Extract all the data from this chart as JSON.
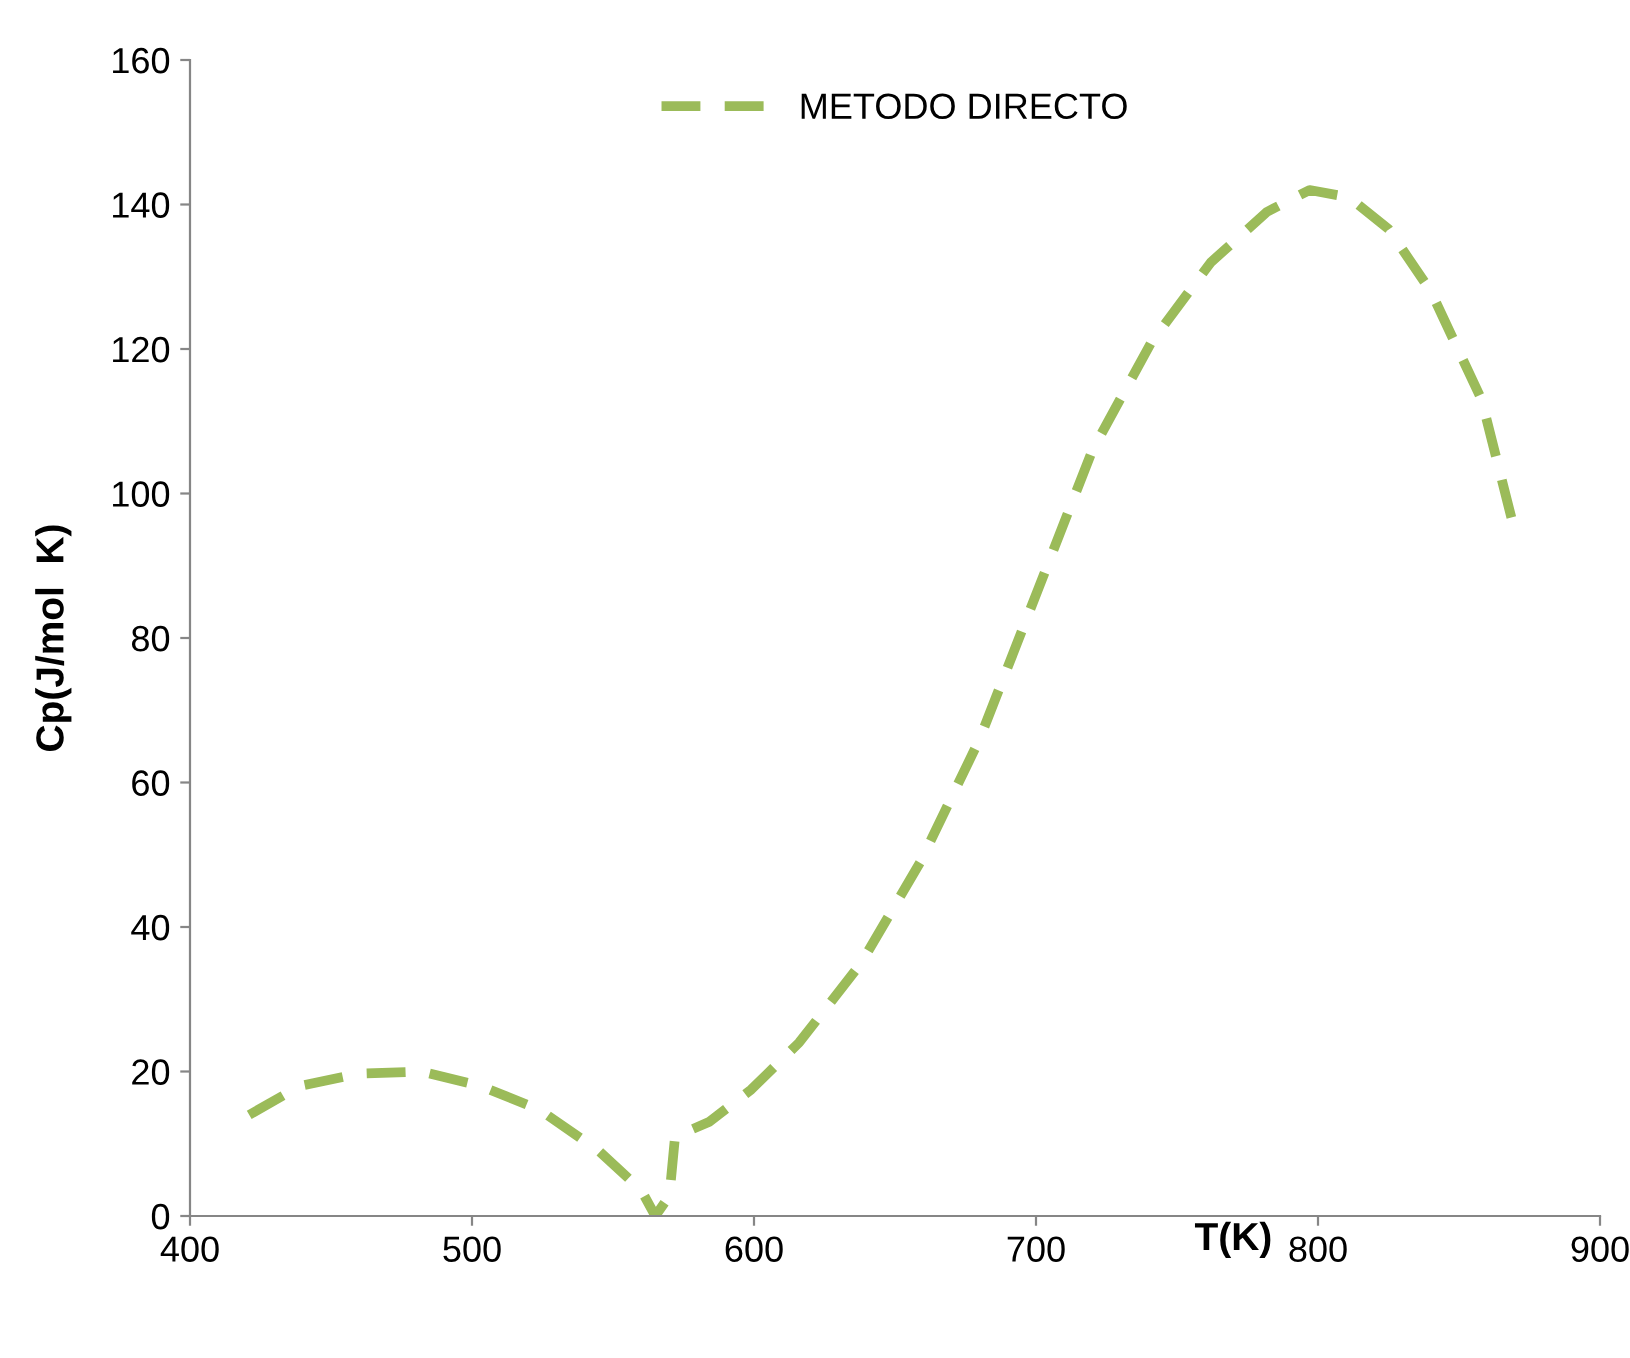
{
  "chart_data": {
    "type": "line",
    "xlabel": "T(K)",
    "ylabel": "Cp(J/mol  K)",
    "xlim": [
      400,
      900
    ],
    "xticks": [
      400,
      500,
      600,
      700,
      800,
      900
    ],
    "ylim": [
      0,
      160
    ],
    "yticks": [
      0,
      20,
      40,
      60,
      80,
      100,
      120,
      140,
      160
    ],
    "grid": false,
    "legend": "top",
    "line_style": "dashed",
    "marker": "none",
    "series": [
      {
        "name": "METODO DIRECTO",
        "color": "#9bbb59",
        "x": [
          421,
          439,
          460,
          482,
          503,
          524,
          545,
          560,
          565,
          570,
          572,
          584,
          599,
          616,
          638,
          659,
          680,
          701,
          720,
          741,
          762,
          782,
          797,
          811,
          825,
          840,
          858,
          869
        ],
        "values": [
          14,
          18,
          19.7,
          20,
          18,
          14.7,
          9,
          3.6,
          0,
          2.8,
          11,
          13,
          17.5,
          24,
          35,
          49,
          66,
          87,
          106,
          121,
          132,
          139,
          142,
          141,
          136.6,
          128,
          113,
          96
        ]
      }
    ]
  }
}
